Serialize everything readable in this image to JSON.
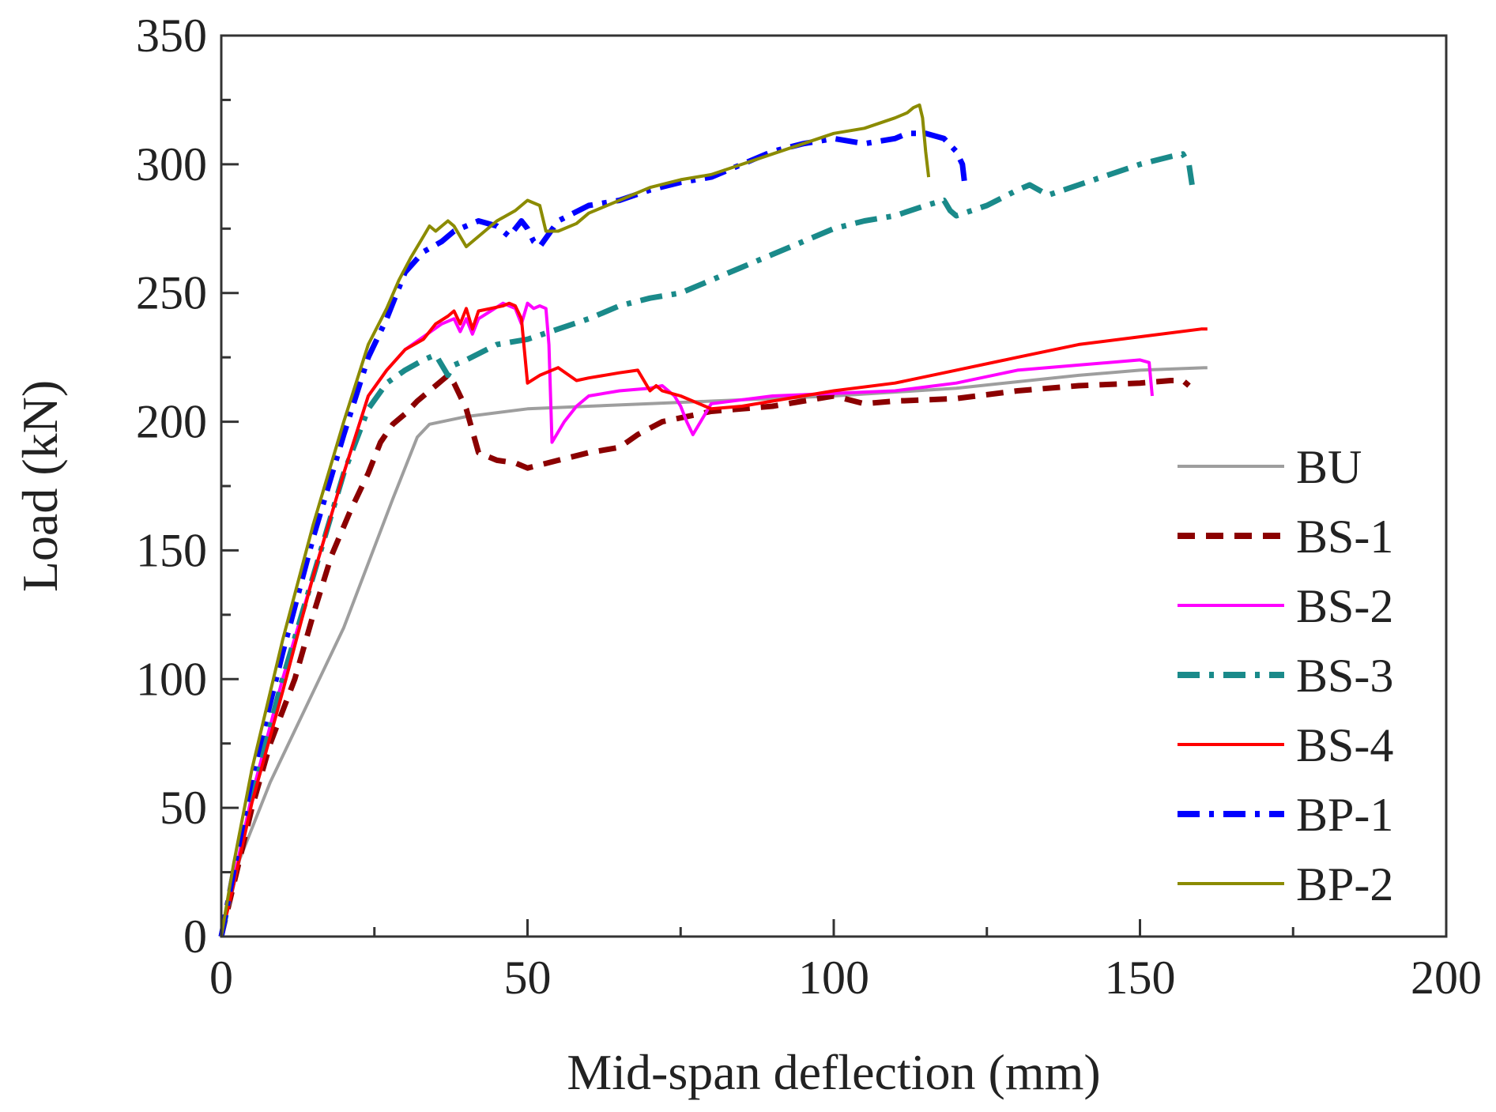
{
  "chart_data": {
    "type": "line",
    "title": "",
    "xlabel": "Mid-span deflection (mm)",
    "ylabel": "Load (kN)",
    "xlim": [
      0,
      200
    ],
    "ylim": [
      0,
      350
    ],
    "xticks": [
      0,
      50,
      100,
      150,
      200
    ],
    "yticks": [
      0,
      50,
      100,
      150,
      200,
      250,
      300,
      350
    ],
    "xtick_labels": [
      "0",
      "50",
      "100",
      "150",
      "200"
    ],
    "ytick_labels": [
      "0",
      "50",
      "100",
      "150",
      "200",
      "250",
      "300",
      "350"
    ],
    "grid": false,
    "legend_position": "right",
    "series": [
      {
        "name": "BU",
        "color": "#9e9e9e",
        "dash": "solid",
        "x": [
          0,
          3,
          8,
          12,
          16,
          20,
          24,
          28,
          30,
          32,
          34,
          40,
          50,
          60,
          70,
          80,
          100,
          120,
          140,
          150,
          161
        ],
        "y": [
          0,
          30,
          60,
          80,
          100,
          120,
          145,
          170,
          182,
          194,
          199,
          202,
          205,
          206,
          207,
          208,
          210,
          213,
          218,
          220,
          221
        ]
      },
      {
        "name": "BS-1",
        "color": "#8b0000",
        "dash": "dashed",
        "x": [
          0,
          2,
          5,
          8,
          12,
          15,
          18,
          21,
          24,
          26,
          28,
          30,
          32,
          34,
          35,
          36,
          37,
          38,
          39,
          40,
          42,
          45,
          48,
          50,
          55,
          60,
          65,
          68,
          72,
          76,
          80,
          85,
          90,
          95,
          100,
          105,
          110,
          120,
          130,
          140,
          150,
          155,
          157,
          158
        ],
        "y": [
          0,
          20,
          50,
          75,
          100,
          125,
          148,
          165,
          180,
          192,
          199,
          203,
          208,
          212,
          214,
          216,
          218,
          215,
          210,
          205,
          188,
          185,
          184,
          182,
          185,
          188,
          190,
          195,
          200,
          202,
          204,
          205,
          206,
          208,
          210,
          207,
          208,
          209,
          212,
          214,
          215,
          216,
          216,
          214
        ]
      },
      {
        "name": "BS-2",
        "color": "#ff00ff",
        "dash": "solid",
        "x": [
          0,
          2,
          5,
          10,
          15,
          20,
          24,
          27,
          30,
          33,
          36,
          38,
          39,
          40,
          41,
          42,
          44,
          46,
          48,
          49,
          50,
          51,
          52,
          53,
          53.5,
          54,
          56,
          58,
          60,
          65,
          70,
          72,
          74,
          75,
          76,
          77,
          80,
          90,
          100,
          110,
          120,
          130,
          140,
          150,
          151.5,
          152
        ],
        "y": [
          0,
          22,
          55,
          100,
          140,
          180,
          210,
          220,
          228,
          233,
          238,
          240,
          235,
          240,
          234,
          240,
          243,
          246,
          244,
          238,
          246,
          244,
          245,
          244,
          230,
          192,
          200,
          206,
          210,
          212,
          213,
          214,
          210,
          206,
          200,
          195,
          207,
          210,
          211,
          212,
          215,
          220,
          222,
          224,
          223,
          210
        ]
      },
      {
        "name": "BS-3",
        "color": "#1a8a8a",
        "dash": "dashdot",
        "x": [
          0,
          2,
          5,
          10,
          15,
          20,
          24,
          27,
          30,
          33,
          35,
          36,
          37,
          38,
          40,
          45,
          50,
          55,
          60,
          65,
          70,
          75,
          80,
          85,
          90,
          95,
          100,
          105,
          110,
          115,
          118,
          119,
          120,
          125,
          130,
          132,
          135,
          140,
          145,
          150,
          155,
          157,
          158,
          158.5
        ],
        "y": [
          0,
          22,
          55,
          100,
          140,
          180,
          205,
          215,
          220,
          224,
          226,
          222,
          218,
          222,
          224,
          230,
          232,
          236,
          240,
          245,
          248,
          250,
          255,
          260,
          265,
          270,
          275,
          278,
          280,
          284,
          286,
          282,
          280,
          284,
          290,
          292,
          288,
          292,
          296,
          300,
          303,
          304,
          300,
          292
        ]
      },
      {
        "name": "BS-4",
        "color": "#ff0000",
        "dash": "solid",
        "x": [
          0,
          2,
          5,
          10,
          15,
          20,
          24,
          27,
          30,
          33,
          35,
          37,
          38,
          39,
          40,
          41,
          42,
          44,
          46,
          47,
          48,
          49,
          50,
          52,
          55,
          58,
          60,
          65,
          68,
          70,
          71,
          72,
          75,
          80,
          85,
          90,
          95,
          100,
          110,
          120,
          130,
          140,
          150,
          160,
          161
        ],
        "y": [
          0,
          20,
          52,
          95,
          140,
          180,
          210,
          220,
          228,
          232,
          238,
          241,
          243,
          238,
          244,
          236,
          243,
          244,
          245,
          246,
          245,
          240,
          215,
          218,
          221,
          216,
          217,
          219,
          220,
          212,
          214,
          212,
          210,
          205,
          206,
          208,
          210,
          212,
          215,
          220,
          225,
          230,
          233,
          236,
          236
        ]
      },
      {
        "name": "BP-1",
        "color": "#0000ff",
        "dash": "dashdot",
        "x": [
          0,
          2,
          5,
          10,
          15,
          20,
          24,
          27,
          30,
          33,
          36,
          38,
          40,
          42,
          45,
          47,
          49,
          50,
          51,
          52,
          55,
          60,
          65,
          70,
          75,
          80,
          85,
          90,
          95,
          100,
          105,
          110,
          112,
          115,
          118,
          120,
          121,
          121.5
        ],
        "y": [
          0,
          25,
          62,
          110,
          155,
          195,
          225,
          240,
          258,
          266,
          270,
          274,
          276,
          278,
          276,
          272,
          278,
          275,
          270,
          268,
          278,
          284,
          286,
          290,
          293,
          295,
          300,
          305,
          308,
          310,
          308,
          310,
          312,
          312,
          310,
          305,
          300,
          290
        ]
      },
      {
        "name": "BP-2",
        "color": "#8b8b00",
        "dash": "solid",
        "x": [
          0,
          2,
          5,
          10,
          15,
          20,
          24,
          27,
          29,
          31,
          33,
          34,
          35,
          36,
          37,
          38,
          40,
          42,
          45,
          48,
          50,
          52,
          53,
          55,
          58,
          60,
          65,
          70,
          75,
          80,
          85,
          90,
          95,
          100,
          105,
          110,
          112,
          113,
          114,
          114.5,
          115,
          115.5
        ],
        "y": [
          0,
          28,
          65,
          115,
          160,
          200,
          230,
          244,
          255,
          264,
          272,
          276,
          274,
          276,
          278,
          276,
          268,
          272,
          278,
          282,
          286,
          284,
          274,
          274,
          277,
          281,
          286,
          291,
          294,
          296,
          300,
          304,
          308,
          312,
          314,
          318,
          320,
          322,
          323,
          318,
          305,
          295
        ]
      }
    ]
  }
}
